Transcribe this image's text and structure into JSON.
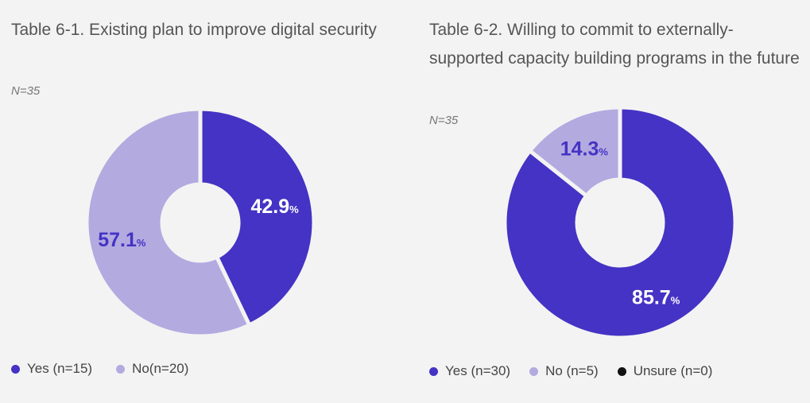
{
  "chart_data": [
    {
      "type": "pie",
      "title": "Table 6-1. Existing plan to improve digital security",
      "subtitle": "N=35",
      "categories": [
        "Yes (n=15)",
        "No(n=20)"
      ],
      "values": [
        42.9,
        57.1
      ],
      "value_labels": [
        {
          "number": "42.9",
          "unit": "%"
        },
        {
          "number": "57.1",
          "unit": "%"
        }
      ],
      "colors": [
        "#4433c4",
        "#b3aae0"
      ],
      "label_colors": [
        "#ffffff",
        "#4433c4"
      ],
      "legend_position": "bottom-left"
    },
    {
      "type": "pie",
      "title": "Table 6-2. Willing to commit to externally-supported capacity building programs in the future",
      "subtitle": "N=35",
      "categories": [
        "Yes (n=30)",
        "No (n=5)",
        "Unsure (n=0)"
      ],
      "values": [
        85.7,
        14.3,
        0
      ],
      "value_labels": [
        {
          "number": "85.7",
          "unit": "%"
        },
        {
          "number": "14.3",
          "unit": "%"
        },
        {
          "number": "",
          "unit": ""
        }
      ],
      "colors": [
        "#4433c4",
        "#b3aae0",
        "#111111"
      ],
      "label_colors": [
        "#ffffff",
        "#4433c4",
        "#ffffff"
      ],
      "legend_position": "bottom-left"
    }
  ]
}
